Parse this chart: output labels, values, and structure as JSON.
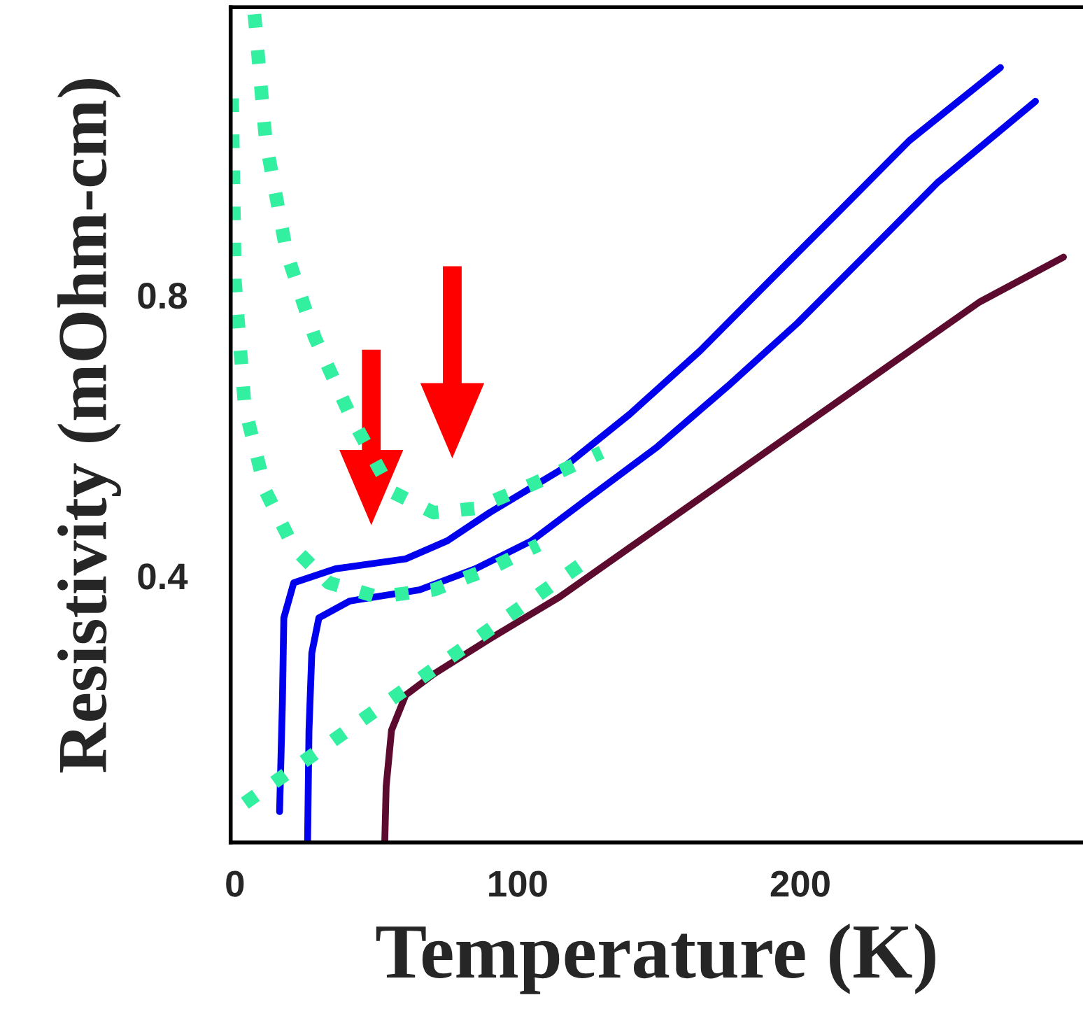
{
  "chart_data": {
    "type": "line",
    "xlabel": "Temperature (K)",
    "ylabel": "Resistivity (mOhm-cm)",
    "xlim": [
      -1.5,
      300
    ],
    "ylim": [
      0.02,
      1.21
    ],
    "xticks": [
      0,
      100,
      200
    ],
    "yticks": [
      0.4,
      0.8
    ],
    "grid": false,
    "marker": "none",
    "series": [
      {
        "color": "#0000ee",
        "line_style": "solid",
        "x": [
          15.8,
          16.8,
          17.3,
          20.8,
          35.6,
          60.4,
          75.2,
          90.1,
          114.9,
          139.6,
          164.4,
          189.1,
          213.9,
          238.6,
          270.8
        ],
        "values": [
          0.064,
          0.22,
          0.34,
          0.39,
          0.41,
          0.424,
          0.45,
          0.49,
          0.55,
          0.63,
          0.72,
          0.82,
          0.92,
          1.02,
          1.124
        ]
      },
      {
        "color": "#0000ee",
        "line_style": "solid",
        "x": [
          25.7,
          26.2,
          27.2,
          29.7,
          40.6,
          65.3,
          85.1,
          105,
          124.8,
          149.5,
          174.3,
          199,
          223.8,
          248.5,
          283.2
        ],
        "values": [
          0.02,
          0.18,
          0.29,
          0.34,
          0.364,
          0.38,
          0.41,
          0.45,
          0.51,
          0.584,
          0.67,
          0.76,
          0.86,
          0.96,
          1.076
        ]
      },
      {
        "color": "#5c0a2e",
        "line_style": "solid",
        "x": [
          53,
          53.5,
          55.4,
          60.4,
          70.3,
          90.1,
          114.9,
          139.6,
          164.4,
          189.1,
          213.9,
          238.6,
          263.4,
          293.1
        ],
        "values": [
          0.02,
          0.1,
          0.18,
          0.23,
          0.26,
          0.31,
          0.37,
          0.44,
          0.51,
          0.58,
          0.65,
          0.72,
          0.79,
          0.854
        ]
      },
      {
        "color": "#33f0a0",
        "line_style": "dotted",
        "x": [
          6.9,
          10.9,
          18.3,
          28.2,
          40.6,
          55.4,
          70.3,
          85.1,
          105,
          129.7
        ],
        "values": [
          1.2,
          1.02,
          0.86,
          0.74,
          0.63,
          0.52,
          0.49,
          0.496,
          0.53,
          0.576
        ]
      },
      {
        "color": "#33f0a0",
        "line_style": "dotted",
        "x": [
          -1,
          0,
          3.5,
          10.9,
          20.8,
          33.2,
          50.5,
          70.3,
          90.1,
          107.4
        ],
        "values": [
          1.08,
          0.82,
          0.64,
          0.52,
          0.44,
          0.39,
          0.37,
          0.38,
          0.41,
          0.444
        ]
      },
      {
        "color": "#33f0a0",
        "line_style": "dotted",
        "x": [
          3.5,
          123.8
        ],
        "values": [
          0.076,
          0.42
        ]
      }
    ]
  }
}
